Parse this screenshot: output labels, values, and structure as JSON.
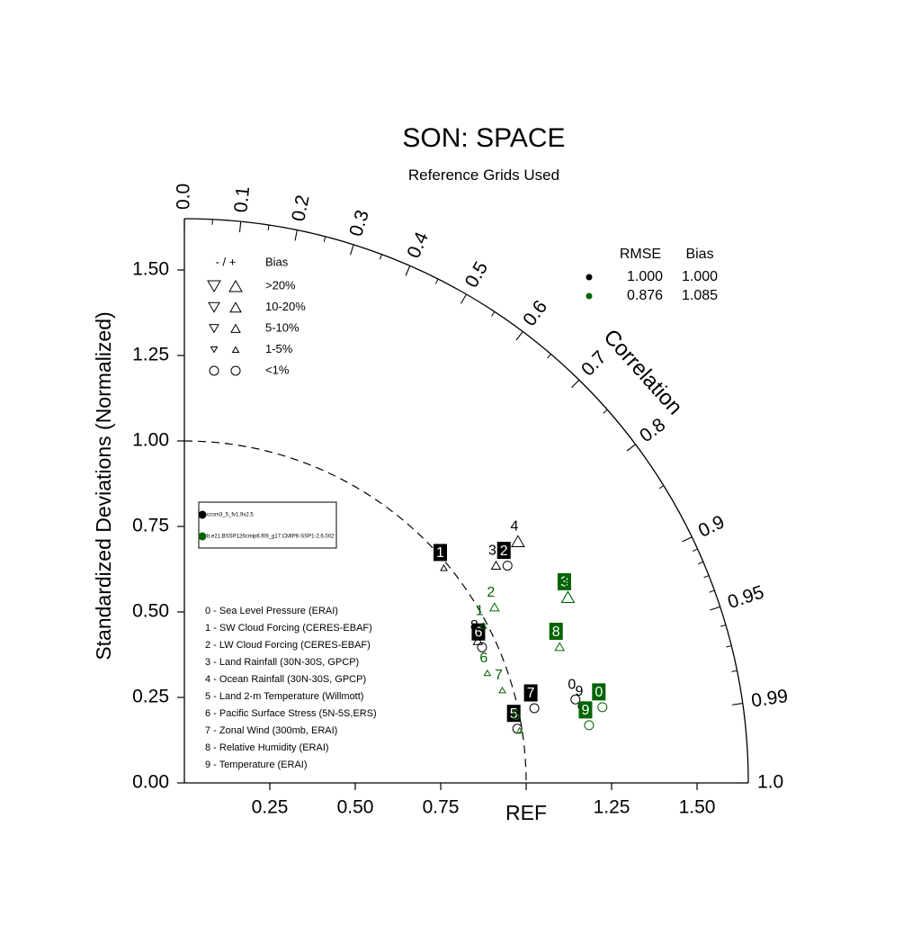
{
  "chart_data": {
    "type": "scatter",
    "subtype": "taylor-diagram",
    "title": "SON: SPACE",
    "subtitle": "Reference Grids Used",
    "ylabel": "Standardized Deviations (Normalized)",
    "arc_label": "Correlation",
    "ref_label": "REF",
    "std_range": [
      0,
      1.65
    ],
    "x_ticks": [
      "0.25",
      "0.50",
      "0.75",
      "1.25",
      "1.50"
    ],
    "y_ticks": [
      "0.00",
      "0.25",
      "0.50",
      "0.75",
      "1.00",
      "1.25",
      "1.50"
    ],
    "correlation_labels": [
      "0.0",
      "0.1",
      "0.2",
      "0.3",
      "0.4",
      "0.5",
      "0.6",
      "0.7",
      "0.8",
      "0.9",
      "0.95",
      "0.99",
      "1.0"
    ],
    "reference_std": 1.0,
    "series_colors": [
      "#000000",
      "#006400"
    ],
    "series": [
      {
        "name": "ccsm3_5_fv1.9x2.5",
        "color": "#000000",
        "points": [
          {
            "id": "0",
            "std": 1.17,
            "corr": 0.978,
            "bias": "<1%",
            "sign": "+",
            "boxed": false
          },
          {
            "id": "1",
            "std": 0.986,
            "corr": 0.77,
            "bias": "1-5%",
            "sign": "+",
            "boxed": true
          },
          {
            "id": "2",
            "std": 1.139,
            "corr": 0.83,
            "bias": "<1%",
            "sign": "+",
            "boxed": true
          },
          {
            "id": "3",
            "std": 1.112,
            "corr": 0.82,
            "bias": "5-10%",
            "sign": "+",
            "boxed": false
          },
          {
            "id": "4",
            "std": 1.205,
            "corr": 0.81,
            "bias": ">20%",
            "sign": "+",
            "boxed": false
          },
          {
            "id": "5",
            "std": 0.987,
            "corr": 0.987,
            "bias": "<1%",
            "sign": "+",
            "boxed": true
          },
          {
            "id": "6",
            "std": 0.957,
            "corr": 0.91,
            "bias": "<1%",
            "sign": "+",
            "boxed": true
          },
          {
            "id": "7",
            "std": 1.047,
            "corr": 0.978,
            "bias": "<1%",
            "sign": "+",
            "boxed": true
          },
          {
            "id": "8",
            "std": 0.954,
            "corr": 0.9,
            "bias": "5-10%",
            "sign": "+",
            "boxed": false
          },
          {
            "id": "9",
            "std": 1.187,
            "corr": 0.982,
            "bias": "<1%",
            "sign": "+",
            "boxed": false
          }
        ]
      },
      {
        "name": "b.e21.BSSP126cmip6.f09_g17.CMIP6-SSP1-2.6.002",
        "color": "#006400",
        "points": [
          {
            "id": "0",
            "std": 1.243,
            "corr": 0.984,
            "bias": "<1%",
            "sign": "+",
            "boxed": true
          },
          {
            "id": "1",
            "std": 0.988,
            "corr": 0.885,
            "bias": "1-5%",
            "sign": "+",
            "boxed": false
          },
          {
            "id": "2",
            "std": 1.043,
            "corr": 0.87,
            "bias": "5-10%",
            "sign": "+",
            "boxed": false
          },
          {
            "id": "3",
            "std": 1.247,
            "corr": 0.9,
            "bias": ">20%",
            "sign": "+",
            "boxed": true
          },
          {
            "id": "4",
            "std": 1.247,
            "corr": 0.9,
            "bias": ">20%",
            "sign": "+",
            "boxed": false
          },
          {
            "id": "5",
            "std": 0.993,
            "corr": 0.988,
            "bias": "1-5%",
            "sign": "+",
            "boxed": false
          },
          {
            "id": "6",
            "std": 0.943,
            "corr": 0.94,
            "bias": "1-5%",
            "sign": "+",
            "boxed": false
          },
          {
            "id": "7",
            "std": 0.969,
            "corr": 0.96,
            "bias": "1-5%",
            "sign": "+",
            "boxed": false
          },
          {
            "id": "8",
            "std": 1.168,
            "corr": 0.94,
            "bias": "5-10%",
            "sign": "+",
            "boxed": true
          },
          {
            "id": "9",
            "std": 1.196,
            "corr": 0.99,
            "bias": "<1%",
            "sign": "+",
            "boxed": true
          }
        ]
      }
    ],
    "stats_table": {
      "headers": [
        "RMSE",
        "Bias"
      ],
      "rows": [
        {
          "rmse": "1.000",
          "bias": "1.000",
          "color": "#000000"
        },
        {
          "rmse": "0.876",
          "bias": "1.085",
          "color": "#006400"
        }
      ]
    },
    "bias_legend": {
      "header_sign": "- / +",
      "header_title": "Bias",
      "rows": [
        {
          "label": ">20%",
          "level": ">20%"
        },
        {
          "label": "10-20%",
          "level": "10-20%"
        },
        {
          "label": "5-10%",
          "level": "5-10%"
        },
        {
          "label": "1-5%",
          "level": "1-5%"
        },
        {
          "label": "<1%",
          "level": "<1%"
        }
      ]
    },
    "variables": [
      "0 - Sea Level Pressure (ERAI)",
      "1 - SW Cloud Forcing (CERES-EBAF)",
      "2 - LW Cloud Forcing (CERES-EBAF)",
      "3 - Land Rainfall (30N-30S, GPCP)",
      "4 - Ocean Rainfall (30N-30S, GPCP)",
      "5 - Land 2-m Temperature (Willmott)",
      "6 - Pacific Surface Stress (5N-5S,ERS)",
      "7 - Zonal Wind (300mb, ERAI)",
      "8 - Relative Humidity (ERAI)",
      "9 - Temperature (ERAI)"
    ]
  }
}
